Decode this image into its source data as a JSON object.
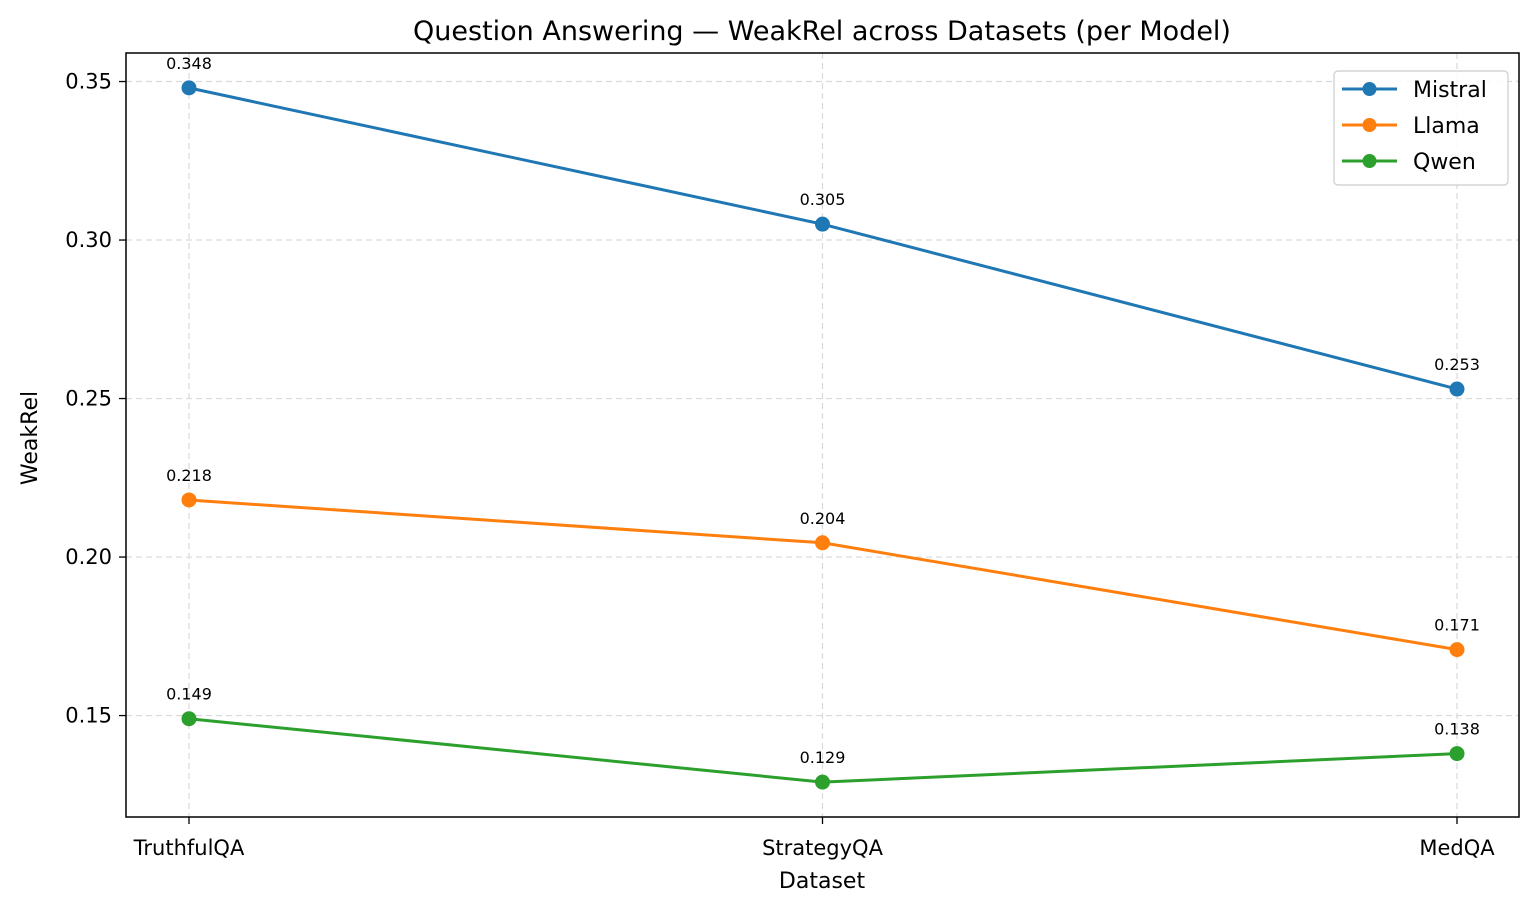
{
  "chart_data": {
    "type": "line",
    "title": "Question Answering — WeakRel across Datasets (per Model)",
    "xlabel": "Dataset",
    "ylabel": "WeakRel",
    "categories": [
      "TruthfulQA",
      "StrategyQA",
      "MedQA"
    ],
    "yticks": [
      0.15,
      0.2,
      0.25,
      0.3,
      0.35
    ],
    "ytick_labels": [
      "0.15",
      "0.20",
      "0.25",
      "0.30",
      "0.35"
    ],
    "ylim": [
      0.118,
      0.359
    ],
    "grid": true,
    "legend_position": "top-right",
    "series": [
      {
        "name": "Mistral",
        "color": "#1f77b4",
        "values": [
          0.348,
          0.305,
          0.253
        ],
        "labels": [
          "0.348",
          "0.305",
          "0.253"
        ]
      },
      {
        "name": "Llama",
        "color": "#ff7f0e",
        "values": [
          0.218,
          0.2045,
          0.1708
        ],
        "labels": [
          "0.218",
          "0.204",
          "0.171"
        ]
      },
      {
        "name": "Qwen",
        "color": "#2ca02c",
        "values": [
          0.149,
          0.129,
          0.138
        ],
        "labels": [
          "0.149",
          "0.129",
          "0.138"
        ]
      }
    ]
  }
}
